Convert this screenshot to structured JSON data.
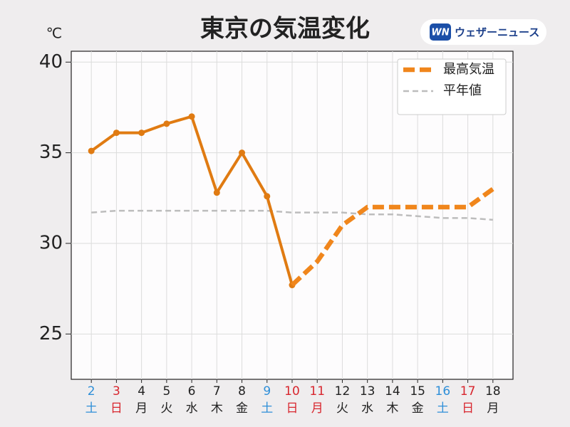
{
  "chart_data": {
    "type": "line",
    "title": "東京の気温変化",
    "y_label": "℃",
    "brand": {
      "mark": "WN",
      "name": "ウェザーニュース"
    },
    "categories": [
      "2",
      "3",
      "4",
      "5",
      "6",
      "7",
      "8",
      "9",
      "10",
      "11",
      "12",
      "13",
      "14",
      "15",
      "16",
      "17",
      "18"
    ],
    "weekdays": [
      "土",
      "日",
      "月",
      "火",
      "水",
      "木",
      "金",
      "土",
      "日",
      "月",
      "火",
      "水",
      "木",
      "金",
      "土",
      "日",
      "月"
    ],
    "category_colors": [
      "#2f8fd8",
      "#d8262e",
      "#222222",
      "#222222",
      "#222222",
      "#222222",
      "#222222",
      "#2f8fd8",
      "#d8262e",
      "#d8262e",
      "#222222",
      "#222222",
      "#222222",
      "#222222",
      "#2f8fd8",
      "#d8262e",
      "#222222"
    ],
    "series": [
      {
        "color": "#e07b12",
        "style": "solid",
        "markers": true,
        "values": [
          35.1,
          36.1,
          36.1,
          36.6,
          37.0,
          32.8,
          35.0,
          32.6,
          27.7,
          null,
          null,
          null,
          null,
          null,
          null,
          null,
          null
        ]
      },
      {
        "name": "最高気温",
        "color": "#f0861c",
        "style": "dashed",
        "markers": false,
        "values": [
          null,
          null,
          null,
          null,
          null,
          null,
          null,
          null,
          27.7,
          29.0,
          31.0,
          32.0,
          32.0,
          32.0,
          32.0,
          32.0,
          33.0
        ]
      },
      {
        "name": "平年値",
        "color": "#bdbdbd",
        "style": "thin-dashed",
        "markers": false,
        "values": [
          31.7,
          31.8,
          31.8,
          31.8,
          31.8,
          31.8,
          31.8,
          31.8,
          31.7,
          31.7,
          31.7,
          31.6,
          31.6,
          31.5,
          31.4,
          31.4,
          31.3
        ]
      }
    ],
    "ylim": [
      22.5,
      40.6
    ],
    "yticks": [
      25,
      30,
      35,
      40
    ],
    "grid": true,
    "legend": "upper right"
  }
}
